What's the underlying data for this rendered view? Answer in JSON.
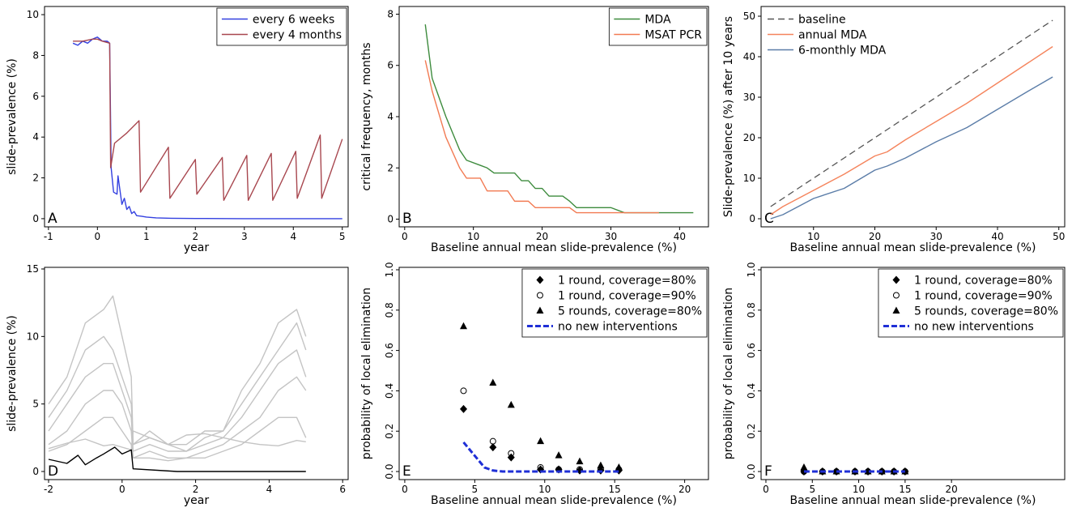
{
  "chart_data": [
    {
      "type": "line",
      "panel": "A",
      "x_label": "year",
      "y_label": "slide-prevalence (%)",
      "xlim": [
        -1.08,
        5.12
      ],
      "ylim": [
        -0.4,
        10.4
      ],
      "xticks": [
        -1,
        0,
        1,
        2,
        3,
        4,
        5
      ],
      "yticks": [
        0,
        2,
        4,
        6,
        8,
        10
      ],
      "legend": "top-right",
      "series": [
        {
          "name": "every 6 weeks",
          "color": "#3340e0",
          "x": [
            -0.5,
            -0.4,
            -0.3,
            -0.2,
            -0.1,
            0,
            0.1,
            0.2,
            0.25,
            0.28,
            0.33,
            0.4,
            0.42,
            0.5,
            0.55,
            0.6,
            0.65,
            0.7,
            0.75,
            0.8,
            0.9,
            1.0,
            1.2,
            1.5,
            2,
            3,
            4,
            5
          ],
          "values": [
            8.6,
            8.5,
            8.7,
            8.6,
            8.8,
            8.9,
            8.7,
            8.7,
            8.6,
            2.5,
            1.3,
            1.2,
            2.1,
            0.7,
            1.0,
            0.45,
            0.6,
            0.25,
            0.35,
            0.15,
            0.12,
            0.08,
            0.04,
            0.02,
            0.01,
            0,
            0,
            0
          ]
        },
        {
          "name": "every 4 months",
          "color": "#a8474f",
          "x": [
            -0.5,
            -0.3,
            -0.1,
            0,
            0.1,
            0.25,
            0.27,
            0.35,
            0.6,
            0.85,
            0.88,
            1.45,
            1.48,
            2.0,
            2.03,
            2.55,
            2.58,
            3.05,
            3.08,
            3.55,
            3.58,
            4.05,
            4.08,
            4.55,
            4.58,
            5.0
          ],
          "values": [
            8.7,
            8.7,
            8.8,
            8.8,
            8.7,
            8.6,
            2.5,
            3.7,
            4.2,
            4.8,
            1.3,
            3.5,
            1.0,
            2.9,
            1.2,
            3.0,
            0.9,
            3.1,
            0.9,
            3.2,
            0.9,
            3.3,
            1.0,
            4.1,
            1.0,
            3.9
          ]
        }
      ]
    },
    {
      "type": "line",
      "panel": "B",
      "x_label": "Baseline annual mean slide-prevalence (%)",
      "y_label": "critical frequency, months",
      "xlim": [
        -0.8,
        44.2
      ],
      "ylim": [
        -0.3,
        8.3
      ],
      "xticks": [
        0,
        10,
        20,
        30,
        40
      ],
      "yticks": [
        0,
        2,
        4,
        6,
        8
      ],
      "legend": "top-right",
      "series": [
        {
          "name": "MDA",
          "color": "#3d8b3d",
          "x": [
            3,
            4,
            6,
            8,
            9,
            11,
            12,
            13,
            16,
            17,
            18,
            19,
            20,
            21,
            23,
            24,
            25,
            30,
            32,
            42
          ],
          "values": [
            7.6,
            5.5,
            4,
            2.7,
            2.3,
            2.1,
            2.0,
            1.8,
            1.8,
            1.5,
            1.5,
            1.2,
            1.2,
            0.9,
            0.9,
            0.7,
            0.45,
            0.45,
            0.25,
            0.25
          ]
        },
        {
          "name": "MSAT PCR",
          "color": "#f27a52",
          "x": [
            3,
            4,
            6,
            8,
            9,
            11,
            12,
            15,
            16,
            18,
            19,
            24,
            25,
            37
          ],
          "values": [
            6.2,
            5,
            3.2,
            2,
            1.6,
            1.6,
            1.1,
            1.1,
            0.7,
            0.7,
            0.45,
            0.45,
            0.25,
            0.25
          ]
        }
      ]
    },
    {
      "type": "line",
      "panel": "C",
      "x_label": "Baseline annual mean slide-prevalence (%)",
      "y_label": "Slide-prevalence (%) after 10 years",
      "xlim": [
        1.45,
        50.96
      ],
      "ylim": [
        -2,
        52.4
      ],
      "xticks": [
        10,
        20,
        30,
        40,
        50
      ],
      "yticks": [
        0,
        10,
        20,
        30,
        40,
        50
      ],
      "legend": "top-left",
      "x": [
        3,
        5,
        10,
        15,
        20,
        22,
        25,
        30,
        35,
        40,
        45,
        49
      ],
      "series": [
        {
          "name": "baseline",
          "color": "#555555",
          "dash": true,
          "values": [
            3,
            5,
            10,
            15,
            20,
            22,
            25,
            30,
            35,
            40,
            45,
            49
          ]
        },
        {
          "name": "annual MDA",
          "color": "#f5845c",
          "values": [
            1,
            3,
            7,
            11,
            15.5,
            16.5,
            19.5,
            24,
            28.5,
            33.5,
            38.5,
            42.5
          ]
        },
        {
          "name": "6-monthly MDA",
          "color": "#5b7da8",
          "values": [
            0,
            1,
            5,
            7.5,
            12,
            13,
            15,
            19,
            22.5,
            27,
            31.5,
            35
          ]
        }
      ]
    },
    {
      "type": "line",
      "panel": "D",
      "x_label": "year",
      "y_label": "slide-prevalence (%)",
      "xlim": [
        -2.11,
        6.15
      ],
      "ylim": [
        -0.6,
        15.12
      ],
      "xticks": [
        -2,
        0,
        2,
        4,
        6
      ],
      "yticks": [
        0,
        5,
        10,
        15
      ],
      "x": [
        -2,
        -1.5,
        -1,
        -0.5,
        -0.25,
        0,
        0.25,
        0.3,
        0.75,
        1.25,
        1.75,
        2.25,
        2.75,
        3.25,
        3.75,
        4.25,
        4.75,
        5
      ],
      "series": [
        {
          "color": "#c4c4c4",
          "values": [
            5,
            7,
            11,
            12,
            13,
            10,
            7,
            2,
            3,
            2,
            2,
            3,
            3,
            6,
            8,
            11,
            12,
            10
          ]
        },
        {
          "color": "#c4c4c4",
          "values": [
            4,
            6,
            9,
            10,
            9,
            7,
            5,
            2,
            2.5,
            2,
            1.5,
            2.5,
            3,
            5,
            7,
            9,
            11,
            9
          ]
        },
        {
          "color": "#c4c4c4",
          "values": [
            3,
            5,
            7,
            8,
            8,
            6,
            4,
            1.5,
            2,
            1.5,
            1.5,
            2,
            2.5,
            4,
            6,
            8,
            9,
            7
          ]
        },
        {
          "color": "#c4c4c4",
          "values": [
            2,
            3,
            5,
            6,
            6,
            5,
            3,
            1,
            1.5,
            1,
            1,
            1.5,
            2,
            3,
            4,
            6,
            7,
            6
          ]
        },
        {
          "color": "#c4c4c4",
          "values": [
            1.5,
            2,
            3,
            4,
            4,
            3,
            2,
            1,
            1,
            0.8,
            1,
            1,
            1.5,
            2,
            3,
            4,
            4,
            2.5
          ]
        },
        {
          "color": "#c4c4c4",
          "values": [
            1.7,
            2.1,
            2.4,
            1.9,
            2,
            1.8,
            1.6,
            3,
            2.5,
            2,
            2.7,
            2.8,
            2.5,
            2.2,
            2.0,
            1.9,
            2.3,
            2.2
          ]
        },
        {
          "color": "#000000",
          "x": [
            -2,
            -1.5,
            -1.2,
            -1,
            -0.7,
            -0.5,
            -0.2,
            0,
            0.25,
            0.3,
            1.5,
            5
          ],
          "values": [
            0.9,
            0.6,
            1.2,
            0.5,
            1.0,
            1.3,
            1.8,
            1.3,
            1.6,
            0.2,
            0,
            0
          ]
        }
      ]
    },
    {
      "type": "scatter",
      "panel": "E",
      "x_label": "Baseline annual mean slide-prevalence (%)",
      "y_label": "probability of local elimination",
      "xlim": [
        -0.4,
        21.7
      ],
      "ylim": [
        -0.04,
        1.012
      ],
      "xticks": [
        0,
        5,
        10,
        15,
        20
      ],
      "yticks": [
        {
          "value": 0,
          "label": "0.0"
        },
        0.2,
        0.4,
        0.6,
        0.8,
        {
          "value": 1,
          "label": "1.0"
        }
      ],
      "legend": "top-right",
      "x": [
        4.2,
        6.3,
        7.6,
        9.7,
        11,
        12.5,
        14,
        15.3
      ],
      "series": [
        {
          "name": "1 round, coverage=80%",
          "color": "#000000",
          "marker": "diamond",
          "values": [
            0.31,
            0.12,
            0.07,
            0.01,
            0.01,
            0.005,
            0.005,
            0.005
          ]
        },
        {
          "name": "1 round, coverage=90%",
          "color": "#000000",
          "marker": "circle-open",
          "values": [
            0.4,
            0.15,
            0.09,
            0.02,
            0.01,
            0.01,
            0.01,
            0.01
          ]
        },
        {
          "name": "5 rounds, coverage=80%",
          "color": "#000000",
          "marker": "triangle",
          "values": [
            0.72,
            0.44,
            0.33,
            0.15,
            0.08,
            0.05,
            0.03,
            0.02
          ]
        },
        {
          "name": "no new interventions",
          "color": "#1f2fd6",
          "dash": true,
          "x": [
            4.2,
            5.7,
            6.3,
            7,
            15.3
          ],
          "values": [
            0.145,
            0.02,
            0.005,
            0,
            0
          ]
        }
      ]
    },
    {
      "type": "scatter",
      "panel": "F",
      "x_label": "Baseline annual mean slide-prevalence (%)",
      "y_label": "probability of local elimination",
      "xlim": [
        -0.52,
        32.2
      ],
      "ylim": [
        -0.04,
        1.012
      ],
      "xticks": [
        0,
        5,
        10,
        15,
        20
      ],
      "yticks": [
        {
          "value": 0,
          "label": "0.0"
        },
        0.2,
        0.4,
        0.6,
        0.8,
        {
          "value": 1,
          "label": "1.0"
        }
      ],
      "legend": "top-right",
      "x": [
        4.1,
        6.1,
        7.6,
        9.6,
        11,
        12.5,
        13.8,
        15
      ],
      "series": [
        {
          "name": "1 round, coverage=80%",
          "color": "#000000",
          "marker": "diamond",
          "values": [
            0,
            0,
            0,
            0,
            0,
            0,
            0,
            0
          ]
        },
        {
          "name": "1 round, coverage=90%",
          "color": "#000000",
          "marker": "circle-open",
          "values": [
            0,
            0,
            0,
            0,
            0,
            0,
            0,
            0
          ]
        },
        {
          "name": "5 rounds, coverage=80%",
          "color": "#000000",
          "marker": "triangle",
          "values": [
            0.02,
            0,
            0,
            0,
            0,
            0,
            0,
            0
          ]
        },
        {
          "name": "no new interventions",
          "color": "#1f2fd6",
          "dash": true,
          "x": [
            4.1,
            15
          ],
          "values": [
            0,
            0
          ]
        }
      ]
    }
  ]
}
